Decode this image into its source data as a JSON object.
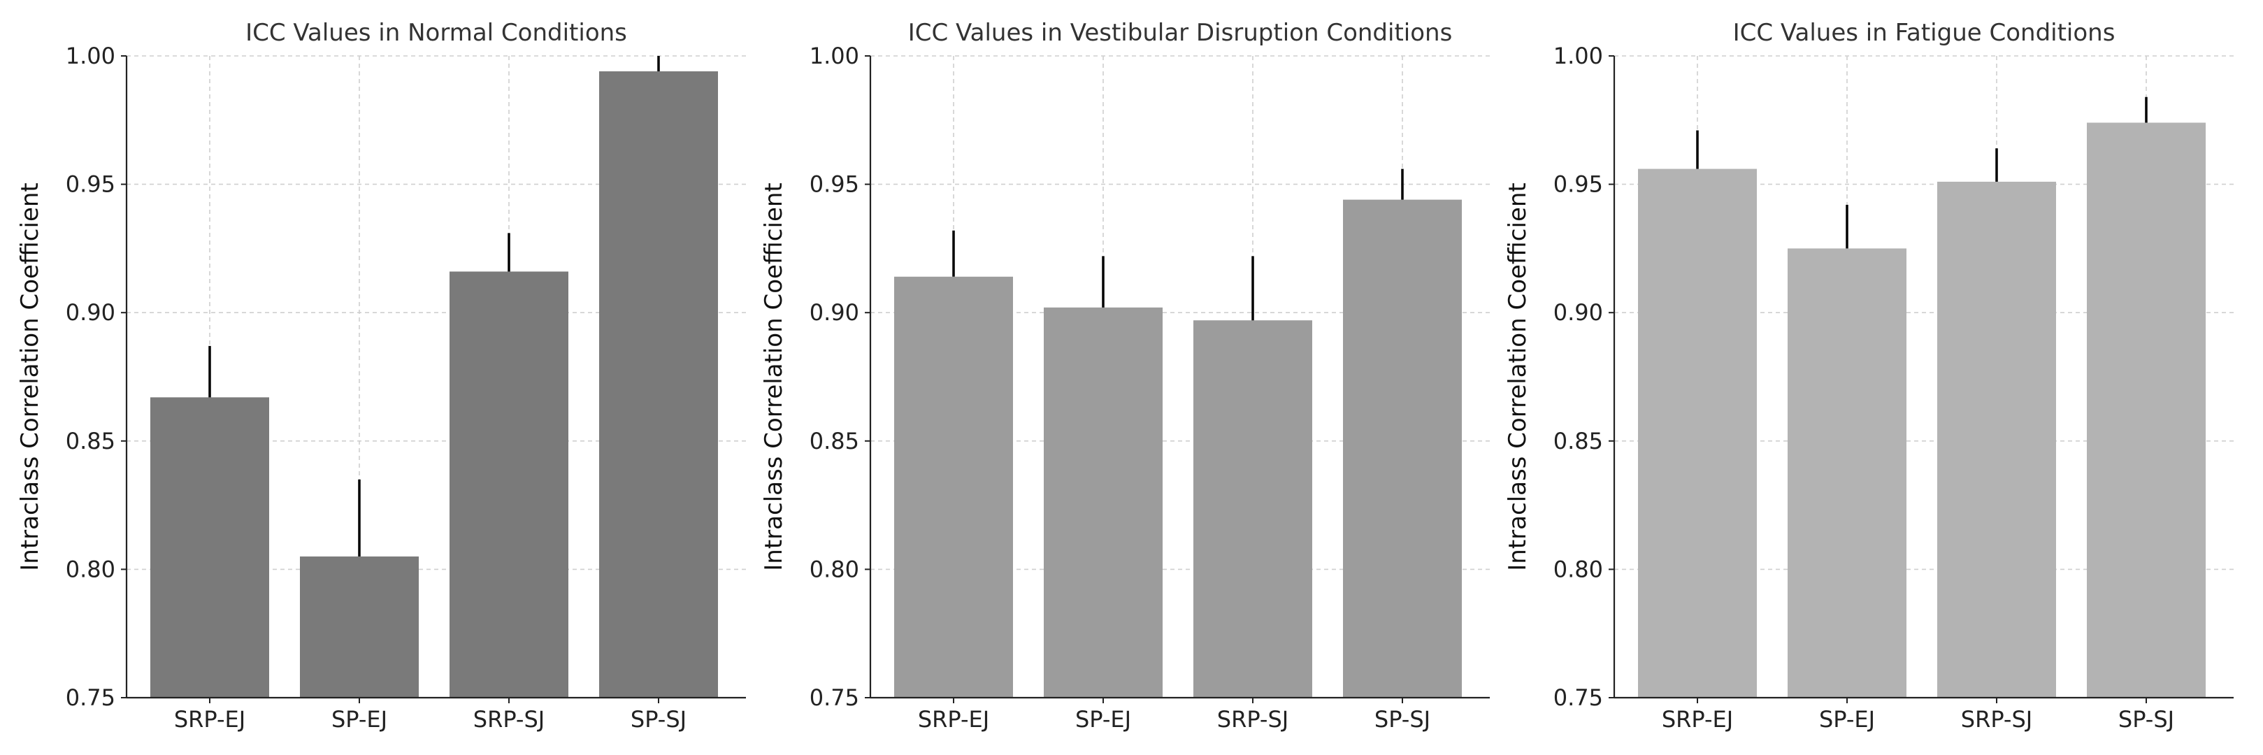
{
  "chart_data": [
    {
      "type": "bar",
      "title": "ICC Values in Normal Conditions",
      "xlabel": "",
      "ylabel": "Intraclass Correlation Coefficient",
      "categories": [
        "SRP-EJ",
        "SP-EJ",
        "SRP-SJ",
        "SP-SJ"
      ],
      "values": [
        0.867,
        0.805,
        0.916,
        0.994
      ],
      "errors": [
        0.02,
        0.03,
        0.015,
        0.006
      ],
      "ylim": [
        0.75,
        1.0
      ],
      "yticks": [
        "0.75",
        "0.80",
        "0.85",
        "0.90",
        "0.95",
        "1.00"
      ],
      "grid": true,
      "bar_color": "#7a7a7a"
    },
    {
      "type": "bar",
      "title": "ICC Values in Vestibular Disruption Conditions",
      "xlabel": "",
      "ylabel": "Intraclass Correlation Coefficient",
      "categories": [
        "SRP-EJ",
        "SP-EJ",
        "SRP-SJ",
        "SP-SJ"
      ],
      "values": [
        0.914,
        0.902,
        0.897,
        0.944
      ],
      "errors": [
        0.018,
        0.02,
        0.025,
        0.012
      ],
      "ylim": [
        0.75,
        1.0
      ],
      "yticks": [
        "0.75",
        "0.80",
        "0.85",
        "0.90",
        "0.95",
        "1.00"
      ],
      "grid": true,
      "bar_color": "#9c9c9c"
    },
    {
      "type": "bar",
      "title": "ICC Values in Fatigue Conditions",
      "xlabel": "",
      "ylabel": "Intraclass Correlation Coefficient",
      "categories": [
        "SRP-EJ",
        "SP-EJ",
        "SRP-SJ",
        "SP-SJ"
      ],
      "values": [
        0.956,
        0.925,
        0.951,
        0.974
      ],
      "errors": [
        0.015,
        0.017,
        0.013,
        0.01
      ],
      "ylim": [
        0.75,
        1.0
      ],
      "yticks": [
        "0.75",
        "0.80",
        "0.85",
        "0.90",
        "0.95",
        "1.00"
      ],
      "grid": true,
      "bar_color": "#b3b3b3"
    }
  ]
}
